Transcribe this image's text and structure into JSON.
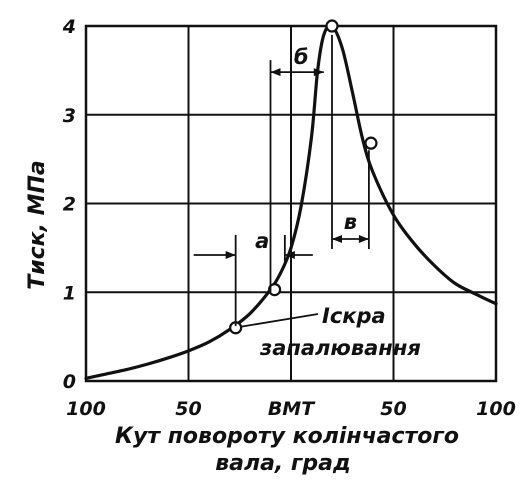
{
  "chart_data": {
    "type": "line",
    "ylabel": "Тиск, МПа",
    "xlabel_line1": "Кут повороту колінчастого",
    "xlabel_line2": "вала, град",
    "x_ticks": [
      {
        "value": -100,
        "label": "100"
      },
      {
        "value": -50,
        "label": "50"
      },
      {
        "value": 0,
        "label": "ВМТ"
      },
      {
        "value": 50,
        "label": "50"
      },
      {
        "value": 100,
        "label": "100"
      }
    ],
    "y_ticks": [
      {
        "value": 0,
        "label": "0"
      },
      {
        "value": 1,
        "label": "1"
      },
      {
        "value": 2,
        "label": "2"
      },
      {
        "value": 3,
        "label": "3"
      },
      {
        "value": 4,
        "label": "4"
      }
    ],
    "xlim": [
      -100,
      100
    ],
    "ylim": [
      0,
      4
    ],
    "grid": true,
    "series": [
      {
        "values": [
          {
            "x": -100,
            "y": 0.03
          },
          {
            "x": -90,
            "y": 0.08
          },
          {
            "x": -80,
            "y": 0.13
          },
          {
            "x": -70,
            "y": 0.19
          },
          {
            "x": -60,
            "y": 0.26
          },
          {
            "x": -50,
            "y": 0.34
          },
          {
            "x": -40,
            "y": 0.44
          },
          {
            "x": -30,
            "y": 0.58
          },
          {
            "x": -20,
            "y": 0.76
          },
          {
            "x": -10,
            "y": 1.03
          },
          {
            "x": -5,
            "y": 1.22
          },
          {
            "x": 0,
            "y": 1.5
          },
          {
            "x": 5,
            "y": 1.98
          },
          {
            "x": 10,
            "y": 2.75
          },
          {
            "x": 13,
            "y": 3.5
          },
          {
            "x": 16,
            "y": 3.9
          },
          {
            "x": 20,
            "y": 4.0
          },
          {
            "x": 25,
            "y": 3.75
          },
          {
            "x": 30,
            "y": 3.25
          },
          {
            "x": 35,
            "y": 2.72
          },
          {
            "x": 40,
            "y": 2.35
          },
          {
            "x": 50,
            "y": 1.87
          },
          {
            "x": 60,
            "y": 1.55
          },
          {
            "x": 70,
            "y": 1.3
          },
          {
            "x": 80,
            "y": 1.1
          },
          {
            "x": 90,
            "y": 0.98
          },
          {
            "x": 100,
            "y": 0.87
          }
        ]
      }
    ],
    "markers": [
      {
        "x": -27,
        "y": 0.6
      },
      {
        "x": -8,
        "y": 1.03
      },
      {
        "x": 20,
        "y": 4.0
      },
      {
        "x": 39,
        "y": 2.68
      }
    ],
    "annotations": {
      "spark_line1": "Іскра",
      "spark_line2": "запалювання",
      "spark_point": {
        "x": -27,
        "y": 0.6
      },
      "phase_a": {
        "label": "а",
        "x_from": -27,
        "x_to": -3,
        "y": 1.42
      },
      "phase_b": {
        "label": "б",
        "x_from": -10,
        "x_to": 16,
        "y": 3.48
      },
      "phase_v": {
        "label": "в",
        "x_from": 20,
        "x_to": 38,
        "y": 1.6
      }
    }
  }
}
